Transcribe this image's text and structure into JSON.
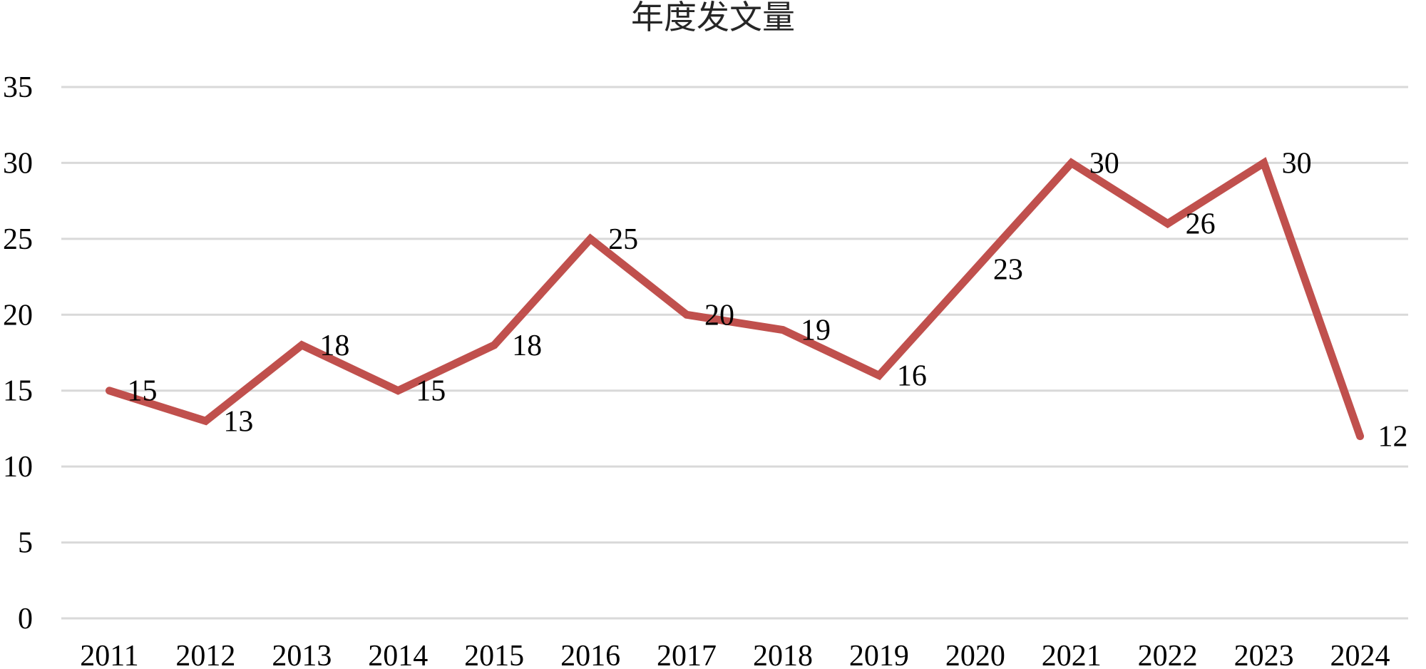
{
  "chart_data": {
    "type": "line",
    "title": "年度发文量",
    "xlabel": "",
    "ylabel": "",
    "categories": [
      "2011",
      "2012",
      "2013",
      "2014",
      "2015",
      "2016",
      "2017",
      "2018",
      "2019",
      "2020",
      "2021",
      "2022",
      "2023",
      "2024"
    ],
    "series": [
      {
        "values": [
          15,
          13,
          18,
          15,
          18,
          25,
          20,
          19,
          16,
          23,
          30,
          26,
          30,
          12
        ],
        "color": "#c0504d"
      }
    ],
    "ylim": [
      0,
      35
    ],
    "yticks": [
      0,
      5,
      10,
      15,
      20,
      25,
      30,
      35
    ],
    "grid": true,
    "legend": "none",
    "data_labels": true
  }
}
